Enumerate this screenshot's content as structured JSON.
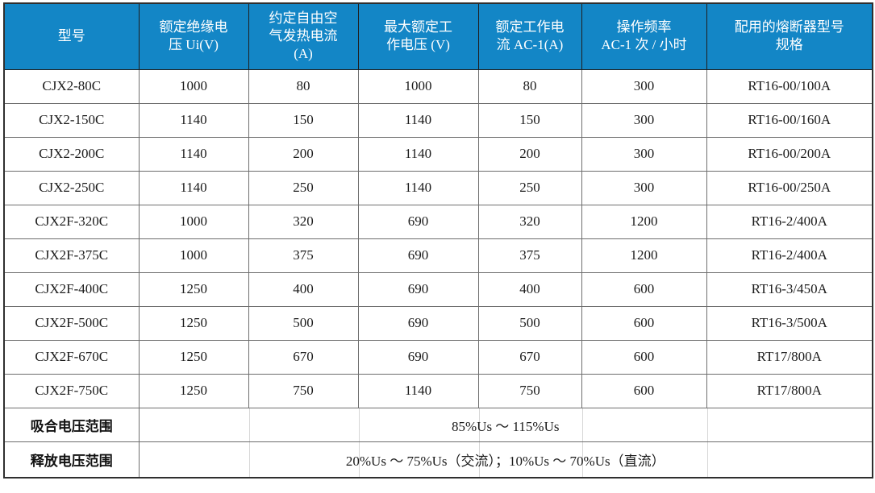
{
  "page": {
    "background": "#ffffff",
    "description_colors": {
      "header_bg": "#1386c6",
      "header_text": "#ffffff",
      "body_text": "#1c1c1c",
      "grid_line": "#6e6e6e",
      "outer_border": "#2f2f2f",
      "faint_grid": "#d7d7d7"
    }
  },
  "table": {
    "columns": [
      {
        "id": "model",
        "label": "型号"
      },
      {
        "id": "rated-insulation-voltage",
        "label": "额定绝缘电\n压 Ui(V)"
      },
      {
        "id": "conventional-free-air-thermal-current",
        "label": "约定自由空\n气发热电流\n(A)"
      },
      {
        "id": "max-rated-working-voltage",
        "label": "最大额定工\n作电压 (V)"
      },
      {
        "id": "rated-working-current-ac1",
        "label": "额定工作电\n流 AC-1(A)"
      },
      {
        "id": "operating-frequency",
        "label": "操作频率\nAC-1 次 / 小时"
      },
      {
        "id": "matching-fuse-spec",
        "label": "配用的熔断器型号\n规格"
      }
    ],
    "rows": [
      [
        "CJX2-80C",
        "1000",
        "80",
        "1000",
        "80",
        "300",
        "RT16-00/100A"
      ],
      [
        "CJX2-150C",
        "1140",
        "150",
        "1140",
        "150",
        "300",
        "RT16-00/160A"
      ],
      [
        "CJX2-200C",
        "1140",
        "200",
        "1140",
        "200",
        "300",
        "RT16-00/200A"
      ],
      [
        "CJX2-250C",
        "1140",
        "250",
        "1140",
        "250",
        "300",
        "RT16-00/250A"
      ],
      [
        "CJX2F-320C",
        "1000",
        "320",
        "690",
        "320",
        "1200",
        "RT16-2/400A"
      ],
      [
        "CJX2F-375C",
        "1000",
        "375",
        "690",
        "375",
        "1200",
        "RT16-2/400A"
      ],
      [
        "CJX2F-400C",
        "1250",
        "400",
        "690",
        "400",
        "600",
        "RT16-3/450A"
      ],
      [
        "CJX2F-500C",
        "1250",
        "500",
        "690",
        "500",
        "600",
        "RT16-3/500A"
      ],
      [
        "CJX2F-670C",
        "1250",
        "670",
        "690",
        "670",
        "600",
        "RT17/800A"
      ],
      [
        "CJX2F-750C",
        "1250",
        "750",
        "1140",
        "750",
        "600",
        "RT17/800A"
      ]
    ],
    "footer_rows": [
      {
        "id": "pickup-voltage-range",
        "label": "吸合电压范围",
        "value": "85%Us ～ 115%Us"
      },
      {
        "id": "release-voltage-range",
        "label": "释放电压范围",
        "value": "20%Us ～ 75%Us（交流）；10%Us ～ 70%Us（直流）"
      }
    ]
  }
}
